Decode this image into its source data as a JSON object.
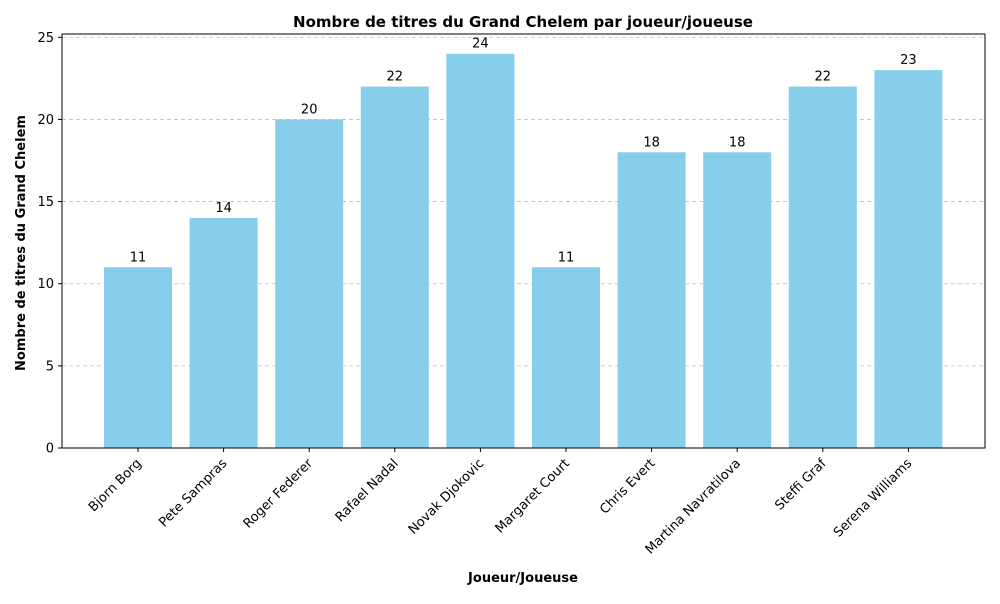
{
  "chart_data": {
    "type": "bar",
    "title": "Nombre de titres du Grand Chelem par joueur/joueuse",
    "xlabel": "Joueur/Joueuse",
    "ylabel": "Nombre de titres du Grand Chelem",
    "categories": [
      "Bjorn Borg",
      "Pete Sampras",
      "Roger Federer",
      "Rafael Nadal",
      "Novak Djokovic",
      "Margaret Court",
      "Chris Evert",
      "Martina Navratilova",
      "Steffi Graf",
      "Serena Williams"
    ],
    "values": [
      11,
      14,
      20,
      22,
      24,
      11,
      18,
      18,
      22,
      23
    ],
    "ylim": [
      0,
      25.2
    ],
    "yticks": [
      0,
      5,
      10,
      15,
      20,
      25
    ],
    "grid": "y-dashed",
    "bar_color": "#87ceeb",
    "grid_color": "#c0c0c0"
  }
}
